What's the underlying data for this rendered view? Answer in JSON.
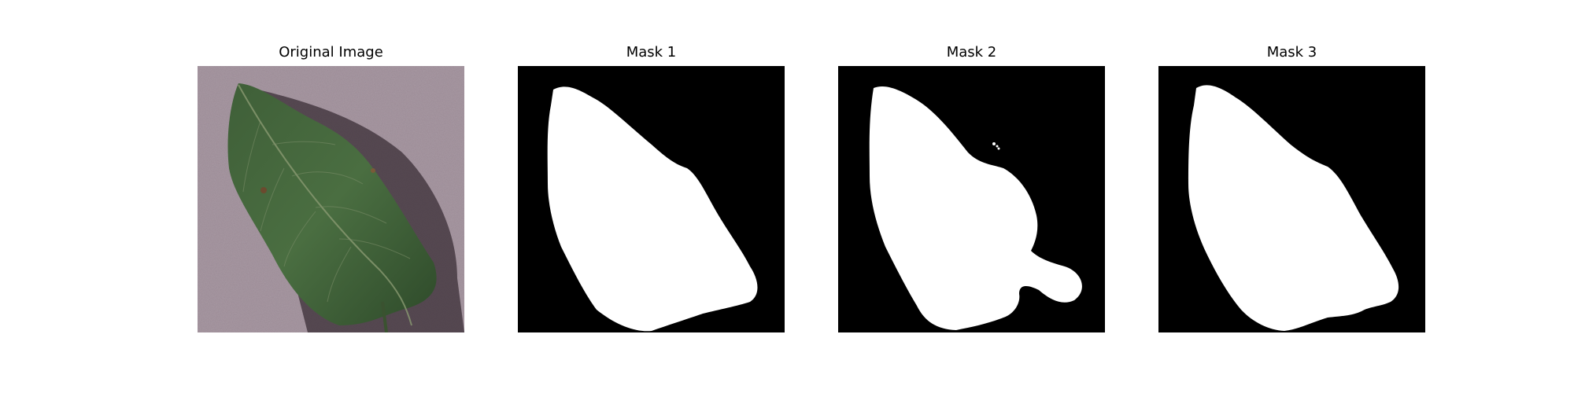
{
  "figure": {
    "panels": [
      {
        "title": "Original Image",
        "kind": "photo"
      },
      {
        "title": "Mask 1",
        "kind": "mask"
      },
      {
        "title": "Mask 2",
        "kind": "mask"
      },
      {
        "title": "Mask 3",
        "kind": "mask"
      }
    ],
    "colors": {
      "background_paper": "#a99aa4",
      "leaf_dark": "#2f4a2a",
      "leaf_mid": "#456b3e",
      "mask_background": "#000000",
      "mask_foreground": "#ffffff"
    }
  }
}
